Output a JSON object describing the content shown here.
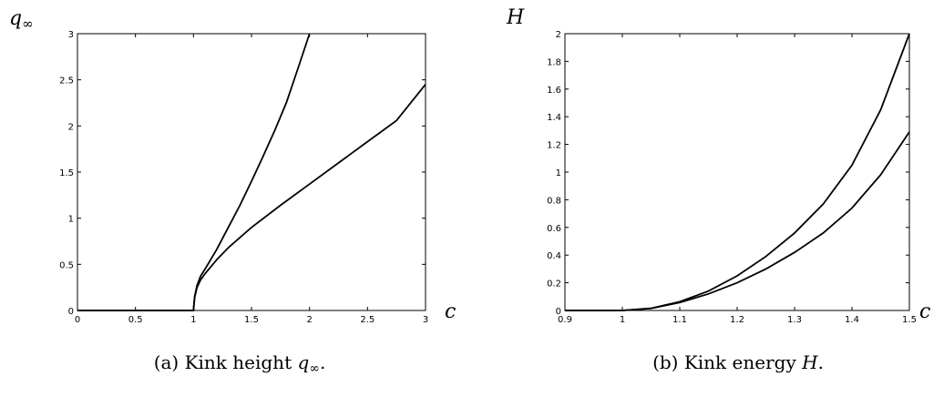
{
  "chart_data": [
    {
      "type": "line",
      "ylabel": {
        "main": "q",
        "sub": "∞"
      },
      "xlabel": {
        "main": "c",
        "sub": ""
      },
      "caption": {
        "prefix": "(a) Kink height ",
        "math": "q",
        "sub": "∞",
        "suffix": "."
      },
      "xlim": [
        0,
        3
      ],
      "ylim": [
        0,
        3
      ],
      "xticks": [
        0,
        0.5,
        1,
        1.5,
        2,
        2.5,
        3
      ],
      "xtick_labels": [
        "0",
        "0.5",
        "1",
        "1.5",
        "2",
        "2.5",
        "3"
      ],
      "yticks": [
        0,
        0.5,
        1,
        1.5,
        2,
        2.5,
        3
      ],
      "ytick_labels": [
        "0",
        "0.5",
        "1",
        "1.5",
        "2",
        "2.5",
        "3"
      ],
      "grid": false,
      "series": [
        {
          "x": [
            0,
            1.0,
            1.01,
            1.03,
            1.06,
            1.1,
            1.2,
            1.3,
            1.4,
            1.5,
            1.6,
            1.7,
            1.8,
            1.9,
            2.0
          ],
          "y": [
            0,
            0,
            0.15,
            0.27,
            0.37,
            0.45,
            0.66,
            0.9,
            1.14,
            1.4,
            1.67,
            1.95,
            2.25,
            2.62,
            3.0
          ]
        },
        {
          "x": [
            0,
            1.0,
            1.01,
            1.03,
            1.06,
            1.1,
            1.2,
            1.3,
            1.5,
            1.75,
            2.0,
            2.25,
            2.5,
            2.75,
            3.0
          ],
          "y": [
            0,
            0,
            0.14,
            0.25,
            0.33,
            0.4,
            0.55,
            0.68,
            0.9,
            1.14,
            1.37,
            1.6,
            1.83,
            2.06,
            2.45
          ]
        }
      ]
    },
    {
      "type": "line",
      "ylabel": {
        "main": "H",
        "sub": ""
      },
      "xlabel": {
        "main": "c",
        "sub": ""
      },
      "caption": {
        "prefix": "(b) Kink energy ",
        "math": "H",
        "sub": "",
        "suffix": "."
      },
      "xlim": [
        0.9,
        1.5
      ],
      "ylim": [
        0,
        2
      ],
      "xticks": [
        0.9,
        1.0,
        1.1,
        1.2,
        1.3,
        1.4,
        1.5
      ],
      "xtick_labels": [
        "0.9",
        "1",
        "1.1",
        "1.2",
        "1.3",
        "1.4",
        "1.5"
      ],
      "yticks": [
        0,
        0.2,
        0.4,
        0.6,
        0.8,
        1.0,
        1.2,
        1.4,
        1.6,
        1.8,
        2.0
      ],
      "ytick_labels": [
        "0",
        "0.2",
        "0.4",
        "0.6",
        "0.8",
        "1",
        "1.2",
        "1.4",
        "1.6",
        "1.8",
        "2"
      ],
      "grid": false,
      "series": [
        {
          "x": [
            0.9,
            1.0,
            1.05,
            1.1,
            1.15,
            1.2,
            1.25,
            1.3,
            1.35,
            1.4,
            1.45,
            1.5
          ],
          "y": [
            0,
            0,
            0.016,
            0.063,
            0.14,
            0.25,
            0.39,
            0.56,
            0.77,
            1.05,
            1.45,
            2.0
          ]
        },
        {
          "x": [
            0.9,
            1.0,
            1.05,
            1.1,
            1.15,
            1.2,
            1.25,
            1.3,
            1.35,
            1.4,
            1.45,
            1.5
          ],
          "y": [
            0,
            0,
            0.015,
            0.058,
            0.12,
            0.2,
            0.3,
            0.42,
            0.56,
            0.74,
            0.98,
            1.29
          ]
        }
      ]
    }
  ]
}
